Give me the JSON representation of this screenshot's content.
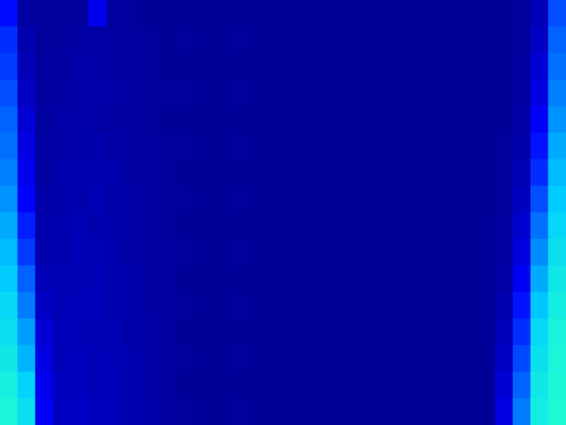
{
  "chart_data": {
    "type": "heatmap",
    "tick_labels": false,
    "zlim": [
      0,
      1
    ],
    "cells": [
      [
        0.35,
        0.15,
        0.13,
        0.13,
        0.14,
        0.3,
        0.14,
        0.13,
        0.12,
        0.12,
        0.12,
        0.11,
        0.12,
        0.12,
        0.11,
        0.12,
        0.12,
        0.12,
        0.11,
        0.12,
        0.12,
        0.11,
        0.12,
        0.12,
        0.11,
        0.12,
        0.12,
        0.12,
        0.12,
        0.13,
        0.2,
        0.45
      ],
      [
        0.4,
        0.18,
        0.13,
        0.14,
        0.15,
        0.16,
        0.15,
        0.14,
        0.13,
        0.12,
        0.13,
        0.12,
        0.12,
        0.13,
        0.12,
        0.12,
        0.12,
        0.11,
        0.12,
        0.12,
        0.12,
        0.11,
        0.12,
        0.12,
        0.12,
        0.11,
        0.12,
        0.12,
        0.12,
        0.13,
        0.22,
        0.48
      ],
      [
        0.42,
        0.2,
        0.14,
        0.15,
        0.17,
        0.16,
        0.15,
        0.14,
        0.13,
        0.12,
        0.12,
        0.11,
        0.12,
        0.12,
        0.11,
        0.12,
        0.12,
        0.12,
        0.11,
        0.12,
        0.12,
        0.11,
        0.12,
        0.12,
        0.11,
        0.12,
        0.12,
        0.12,
        0.12,
        0.14,
        0.25,
        0.5
      ],
      [
        0.45,
        0.22,
        0.14,
        0.15,
        0.16,
        0.17,
        0.16,
        0.15,
        0.13,
        0.13,
        0.13,
        0.12,
        0.12,
        0.13,
        0.12,
        0.12,
        0.12,
        0.11,
        0.12,
        0.12,
        0.12,
        0.11,
        0.12,
        0.12,
        0.12,
        0.11,
        0.12,
        0.12,
        0.12,
        0.15,
        0.28,
        0.53
      ],
      [
        0.48,
        0.25,
        0.14,
        0.16,
        0.17,
        0.16,
        0.15,
        0.14,
        0.13,
        0.12,
        0.12,
        0.11,
        0.12,
        0.12,
        0.11,
        0.12,
        0.12,
        0.12,
        0.11,
        0.12,
        0.12,
        0.11,
        0.12,
        0.12,
        0.11,
        0.12,
        0.12,
        0.12,
        0.12,
        0.16,
        0.32,
        0.56
      ],
      [
        0.5,
        0.28,
        0.15,
        0.16,
        0.17,
        0.18,
        0.16,
        0.15,
        0.14,
        0.13,
        0.13,
        0.12,
        0.12,
        0.13,
        0.12,
        0.12,
        0.12,
        0.11,
        0.12,
        0.12,
        0.12,
        0.11,
        0.12,
        0.12,
        0.12,
        0.11,
        0.12,
        0.12,
        0.13,
        0.17,
        0.36,
        0.6
      ],
      [
        0.53,
        0.3,
        0.15,
        0.17,
        0.18,
        0.18,
        0.17,
        0.15,
        0.14,
        0.13,
        0.12,
        0.11,
        0.12,
        0.12,
        0.11,
        0.12,
        0.12,
        0.12,
        0.11,
        0.12,
        0.12,
        0.11,
        0.12,
        0.12,
        0.11,
        0.12,
        0.12,
        0.12,
        0.13,
        0.19,
        0.4,
        0.63
      ],
      [
        0.56,
        0.33,
        0.16,
        0.17,
        0.18,
        0.19,
        0.17,
        0.16,
        0.14,
        0.13,
        0.13,
        0.12,
        0.12,
        0.13,
        0.12,
        0.12,
        0.12,
        0.11,
        0.12,
        0.12,
        0.12,
        0.11,
        0.12,
        0.12,
        0.12,
        0.11,
        0.12,
        0.12,
        0.13,
        0.21,
        0.45,
        0.66
      ],
      [
        0.6,
        0.38,
        0.17,
        0.18,
        0.19,
        0.18,
        0.17,
        0.16,
        0.15,
        0.13,
        0.12,
        0.11,
        0.12,
        0.12,
        0.11,
        0.12,
        0.12,
        0.12,
        0.11,
        0.12,
        0.12,
        0.11,
        0.12,
        0.12,
        0.11,
        0.12,
        0.12,
        0.12,
        0.14,
        0.24,
        0.5,
        0.69
      ],
      [
        0.63,
        0.42,
        0.18,
        0.18,
        0.2,
        0.19,
        0.18,
        0.16,
        0.15,
        0.14,
        0.13,
        0.12,
        0.12,
        0.13,
        0.12,
        0.12,
        0.12,
        0.11,
        0.12,
        0.12,
        0.12,
        0.11,
        0.12,
        0.12,
        0.12,
        0.11,
        0.12,
        0.12,
        0.15,
        0.27,
        0.55,
        0.72
      ],
      [
        0.66,
        0.48,
        0.2,
        0.19,
        0.19,
        0.2,
        0.18,
        0.17,
        0.15,
        0.14,
        0.12,
        0.11,
        0.12,
        0.12,
        0.11,
        0.12,
        0.12,
        0.12,
        0.11,
        0.12,
        0.12,
        0.11,
        0.12,
        0.12,
        0.11,
        0.12,
        0.12,
        0.12,
        0.16,
        0.31,
        0.6,
        0.75
      ],
      [
        0.7,
        0.52,
        0.22,
        0.19,
        0.2,
        0.2,
        0.18,
        0.17,
        0.15,
        0.14,
        0.13,
        0.12,
        0.12,
        0.13,
        0.12,
        0.12,
        0.12,
        0.11,
        0.12,
        0.12,
        0.12,
        0.11,
        0.12,
        0.12,
        0.12,
        0.11,
        0.12,
        0.12,
        0.18,
        0.36,
        0.65,
        0.77
      ],
      [
        0.72,
        0.58,
        0.25,
        0.2,
        0.2,
        0.19,
        0.19,
        0.17,
        0.16,
        0.14,
        0.12,
        0.11,
        0.12,
        0.12,
        0.11,
        0.12,
        0.12,
        0.12,
        0.11,
        0.12,
        0.12,
        0.11,
        0.12,
        0.12,
        0.11,
        0.12,
        0.12,
        0.12,
        0.2,
        0.4,
        0.69,
        0.79
      ],
      [
        0.75,
        0.62,
        0.28,
        0.2,
        0.21,
        0.2,
        0.19,
        0.18,
        0.16,
        0.15,
        0.13,
        0.12,
        0.12,
        0.13,
        0.12,
        0.12,
        0.12,
        0.11,
        0.12,
        0.12,
        0.12,
        0.11,
        0.12,
        0.12,
        0.12,
        0.11,
        0.12,
        0.12,
        0.22,
        0.44,
        0.72,
        0.8
      ],
      [
        0.78,
        0.68,
        0.3,
        0.21,
        0.21,
        0.2,
        0.2,
        0.18,
        0.16,
        0.15,
        0.12,
        0.11,
        0.12,
        0.12,
        0.11,
        0.12,
        0.12,
        0.12,
        0.11,
        0.12,
        0.12,
        0.11,
        0.12,
        0.12,
        0.11,
        0.12,
        0.12,
        0.12,
        0.25,
        0.48,
        0.75,
        0.81
      ],
      [
        0.8,
        0.72,
        0.32,
        0.21,
        0.22,
        0.21,
        0.2,
        0.18,
        0.17,
        0.15,
        0.13,
        0.12,
        0.12,
        0.13,
        0.12,
        0.12,
        0.12,
        0.11,
        0.12,
        0.12,
        0.12,
        0.11,
        0.12,
        0.12,
        0.12,
        0.11,
        0.12,
        0.12,
        0.28,
        0.52,
        0.77,
        0.82
      ]
    ]
  }
}
